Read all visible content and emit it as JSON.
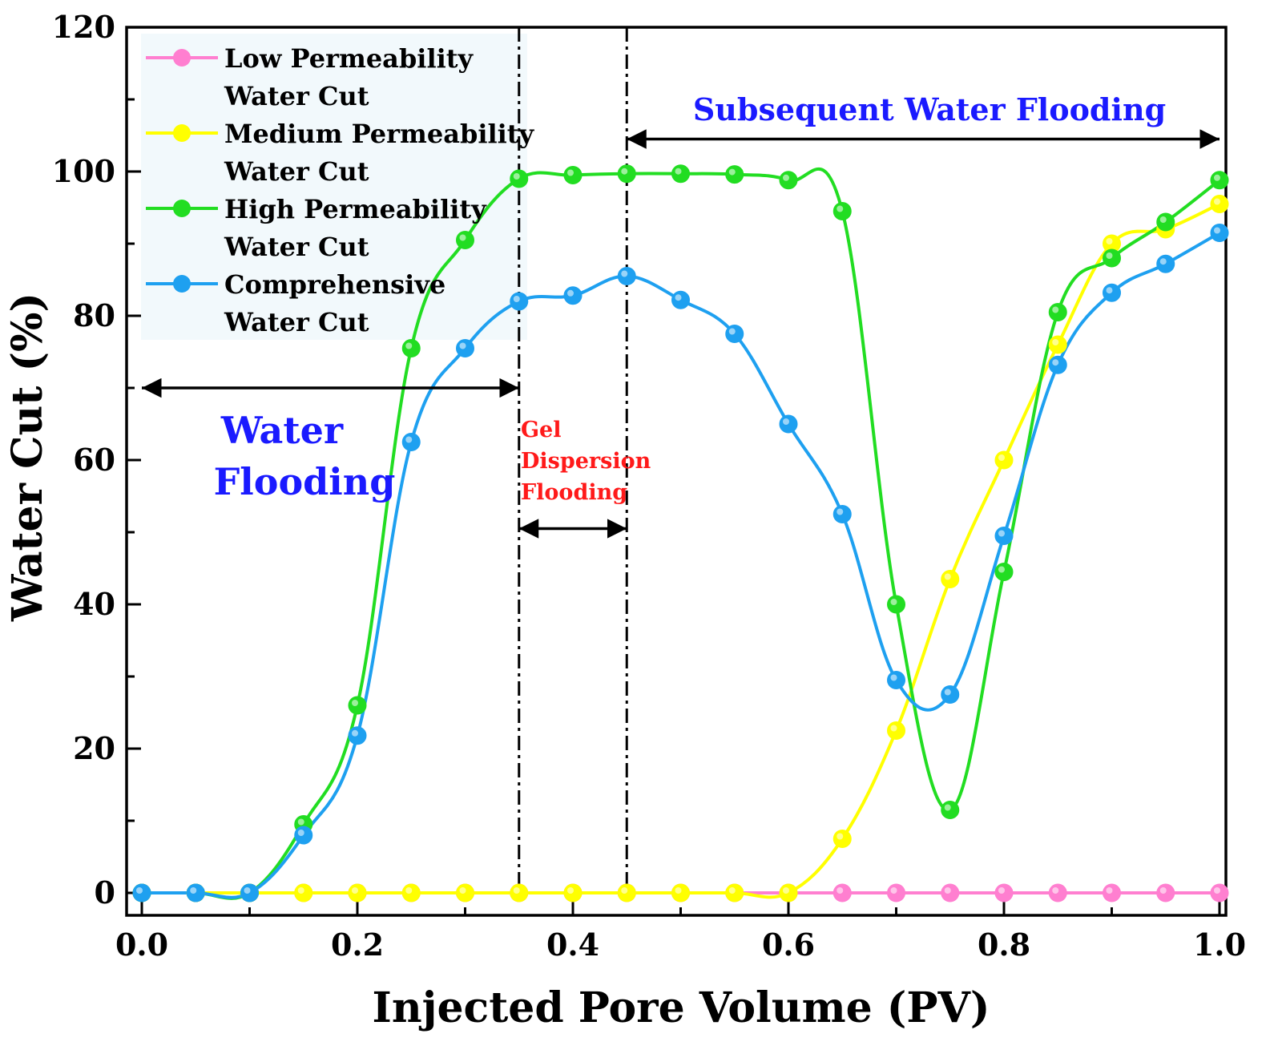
{
  "chart_data": {
    "type": "line",
    "xlabel": "Injected Pore Volume (PV)",
    "ylabel": "Water Cut (%)",
    "xlim": [
      0.0,
      1.0
    ],
    "ylim": [
      0,
      120
    ],
    "xticks": [
      "0.0",
      "0.2",
      "0.4",
      "0.6",
      "0.8",
      "1.0"
    ],
    "yticks": [
      "0",
      "20",
      "40",
      "60",
      "80",
      "100",
      "120"
    ],
    "x": [
      0.0,
      0.05,
      0.1,
      0.15,
      0.2,
      0.25,
      0.3,
      0.35,
      0.4,
      0.45,
      0.5,
      0.55,
      0.6,
      0.65,
      0.7,
      0.75,
      0.8,
      0.85,
      0.9,
      0.95,
      1.0
    ],
    "series": [
      {
        "name": "Low Permeability Water Cut",
        "color": "#ff7fd0",
        "values": [
          0,
          0,
          0,
          0,
          0,
          0,
          0,
          0,
          0,
          0,
          0,
          0,
          0,
          0,
          0,
          0,
          0,
          0,
          0,
          0,
          0
        ]
      },
      {
        "name": "Medium Permeability Water Cut",
        "color": "#ffff00",
        "values": [
          0,
          0,
          0,
          0,
          0,
          0,
          0,
          0,
          0,
          0,
          0,
          0,
          0,
          7.5,
          22.5,
          43.5,
          60.0,
          76.0,
          90.0,
          92.0,
          95.5
        ]
      },
      {
        "name": "High Permeability Water Cut",
        "color": "#22dd22",
        "values": [
          0,
          0,
          0,
          9.5,
          26.0,
          75.5,
          90.5,
          99.0,
          99.5,
          99.7,
          99.7,
          99.6,
          98.8,
          94.5,
          40.0,
          11.5,
          44.5,
          80.5,
          88.0,
          93.0,
          98.8
        ]
      },
      {
        "name": "Comprehensive Water Cut",
        "color": "#1ea0f0",
        "values": [
          0,
          0,
          0,
          8.0,
          21.8,
          62.5,
          75.5,
          82.0,
          82.8,
          85.5,
          82.2,
          77.5,
          65.0,
          52.5,
          29.5,
          27.5,
          49.5,
          73.2,
          83.2,
          87.2,
          91.5
        ]
      }
    ],
    "legend": {
      "placement": "top-left",
      "entries": [
        [
          "Low Permeability",
          "Water Cut"
        ],
        [
          "Medium Permeability",
          "Water Cut"
        ],
        [
          "High Permeability",
          "Water Cut"
        ],
        [
          "Comprehensive",
          "Water Cut"
        ]
      ]
    },
    "stage_boundaries": [
      0.35,
      0.45
    ],
    "annotations": {
      "water_flooding": [
        "Water",
        "Flooding"
      ],
      "gel_dispersion": [
        "Gel",
        "Dispersion",
        "Flooding"
      ],
      "subsequent": "Subsequent Water Flooding"
    }
  }
}
